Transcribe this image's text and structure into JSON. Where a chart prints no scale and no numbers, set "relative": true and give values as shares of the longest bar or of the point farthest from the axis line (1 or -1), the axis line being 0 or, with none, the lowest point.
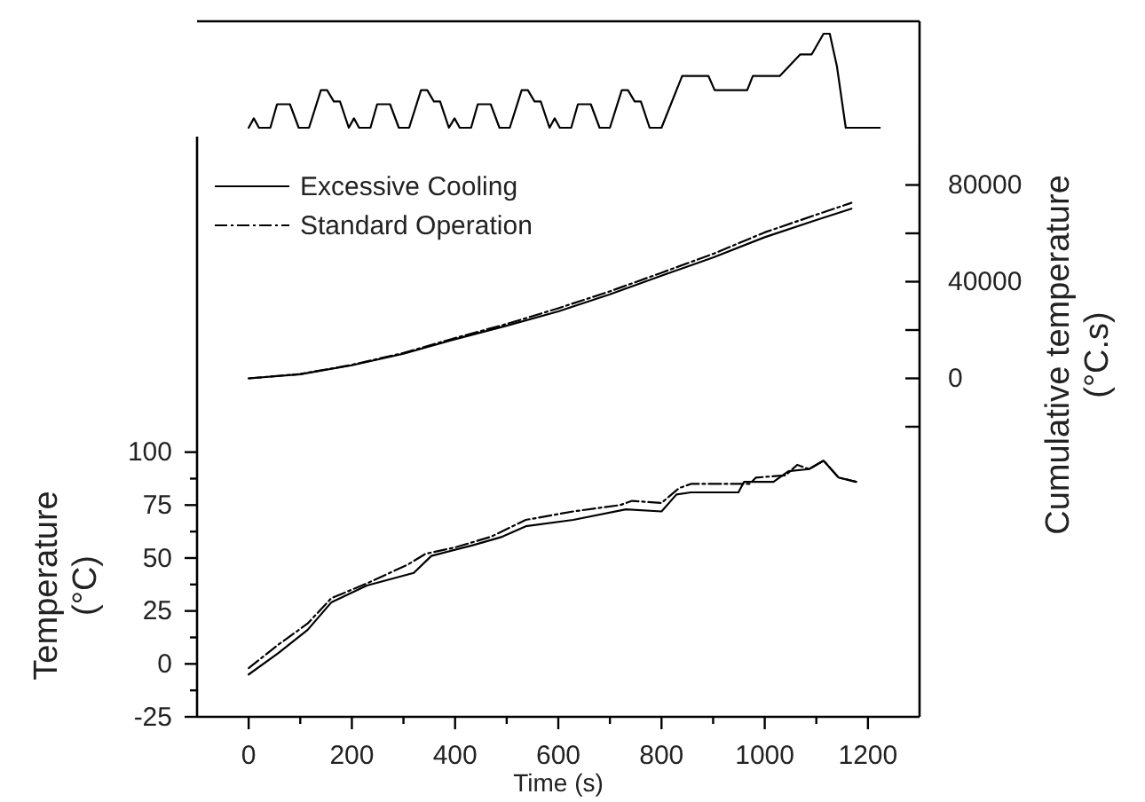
{
  "chart_data": [
    {
      "type": "line",
      "relative": true,
      "xlim": [
        -100,
        1300
      ],
      "series": [
        {
          "color": "#000000",
          "x": [
            0,
            10,
            20,
            42,
            55,
            80,
            97,
            117,
            140,
            152,
            165,
            177,
            194,
            204,
            214,
            236,
            249,
            274,
            291,
            311,
            334,
            346,
            359,
            371,
            388,
            399,
            409,
            431,
            444,
            469,
            486,
            506,
            529,
            541,
            554,
            566,
            583,
            593,
            603,
            625,
            638,
            663,
            680,
            700,
            723,
            735,
            748,
            760,
            777,
            800,
            840,
            891,
            903,
            966,
            977,
            1029,
            1069,
            1091,
            1114,
            1126,
            1140,
            1157,
            1223
          ],
          "values": [
            0,
            0.1,
            0,
            0,
            0.25,
            0.25,
            0,
            0,
            0.4,
            0.4,
            0.28,
            0.28,
            0,
            0.1,
            0,
            0,
            0.25,
            0.25,
            0,
            0,
            0.4,
            0.4,
            0.28,
            0.28,
            0,
            0.1,
            0,
            0,
            0.25,
            0.25,
            0,
            0,
            0.4,
            0.4,
            0.28,
            0.28,
            0,
            0.1,
            0,
            0,
            0.25,
            0.25,
            0,
            0,
            0.4,
            0.4,
            0.28,
            0.28,
            0,
            0,
            0.55,
            0.55,
            0.4,
            0.4,
            0.55,
            0.55,
            0.78,
            0.78,
            1,
            1,
            0.65,
            0,
            0
          ]
        }
      ]
    },
    {
      "type": "line",
      "xlabel": "Time (s)",
      "ylabel": "Temperature (°C)",
      "y2label": "Cumulative temperature (°C.s)",
      "xlim": [
        -100,
        1300
      ],
      "xticks": [
        0,
        {
          "value": 100,
          "label": null
        },
        200,
        {
          "value": 300,
          "label": null
        },
        400,
        {
          "value": 500,
          "label": null
        },
        600,
        {
          "value": 700,
          "label": null
        },
        800,
        {
          "value": 900,
          "label": null
        },
        1000,
        {
          "value": 1100,
          "label": null
        },
        1200
      ],
      "ylim": [
        -25,
        249
      ],
      "yticks": [
        -25,
        {
          "value": -12.5,
          "label": null
        },
        0,
        {
          "value": 12.5,
          "label": null
        },
        25,
        {
          "value": 37.5,
          "label": null
        },
        50,
        {
          "value": 62.5,
          "label": null
        },
        75,
        {
          "value": 87.5,
          "label": null
        },
        100
      ],
      "y2lim": [
        -140000,
        100000
      ],
      "y2ticks": [
        {
          "value": -20000,
          "label": null
        },
        0,
        {
          "value": 20000,
          "label": null
        },
        40000,
        {
          "value": 60000,
          "label": null
        },
        80000
      ],
      "legend": "top left",
      "grid": false,
      "series": [
        {
          "name": "Excessive Cooling",
          "color": "#000000",
          "line_style": "solid",
          "x": [
            0,
            57,
            114,
            160,
            229,
            320,
            354,
            434,
            491,
            537,
            629,
            731,
            800,
            829,
            857,
            949,
            960,
            1017,
            1046,
            1086,
            1114,
            1143,
            1177
          ],
          "values": [
            -5,
            5,
            16,
            29,
            37,
            43,
            51,
            56,
            60,
            65,
            68,
            73,
            72,
            80,
            81,
            81,
            86,
            86,
            91,
            92,
            96,
            88,
            86
          ]
        },
        {
          "name": "Standard Operation",
          "color": "#000000",
          "line_style": "dashed",
          "x": [
            0,
            57,
            114,
            160,
            229,
            309,
            343,
            400,
            469,
            537,
            629,
            720,
            743,
            800,
            834,
            857,
            971,
            983,
            1040,
            1063,
            1086,
            1114,
            1143,
            1177
          ],
          "values": [
            -2,
            9,
            19,
            31,
            38,
            47,
            52,
            55,
            60,
            68,
            72,
            75,
            77,
            76,
            83,
            85,
            85,
            88,
            89,
            94,
            92,
            96,
            88,
            86
          ]
        },
        {
          "color": "#000000",
          "line_style": "solid",
          "axis": "y2",
          "x": [
            0,
            100,
            200,
            300,
            400,
            500,
            600,
            700,
            800,
            900,
            1000,
            1100,
            1168
          ],
          "values": [
            0,
            1700,
            5400,
            10200,
            16200,
            21800,
            27700,
            34800,
            42500,
            50000,
            58400,
            65500,
            70200
          ]
        },
        {
          "color": "#000000",
          "line_style": "dashed",
          "axis": "y2",
          "x": [
            0,
            100,
            200,
            300,
            400,
            500,
            600,
            700,
            800,
            900,
            1000,
            1100,
            1168
          ],
          "values": [
            0,
            1800,
            5600,
            10500,
            16700,
            22500,
            29000,
            36000,
            43700,
            51500,
            60400,
            67700,
            72600
          ]
        }
      ]
    }
  ]
}
